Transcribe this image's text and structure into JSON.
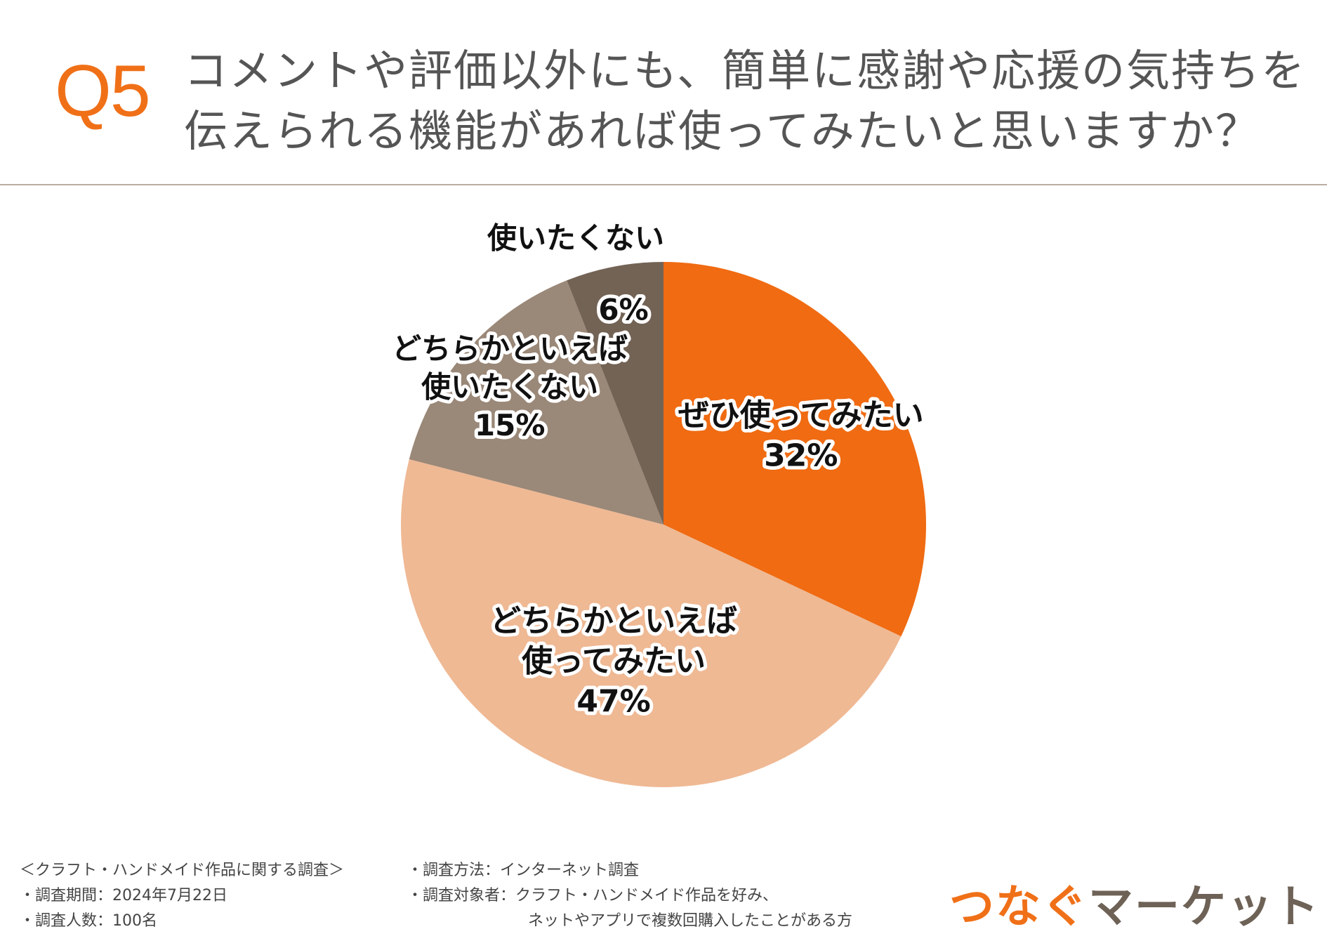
{
  "header": {
    "qnum": "Q5",
    "question_line1": "コメントや評価以外にも、簡単に感謝や応援の気持ちを",
    "question_line2": "伝えられる機能があれば使ってみたいと思いますか？"
  },
  "chart_data": {
    "type": "pie",
    "start_angle_deg": 0,
    "direction": "clockwise",
    "slices": [
      {
        "label_lines": [
          "ぜひ使ってみたい"
        ],
        "value": 32,
        "value_label": "32%",
        "color": "#f06b12"
      },
      {
        "label_lines": [
          "どちらかといえば",
          "使ってみたい"
        ],
        "value": 47,
        "value_label": "47%",
        "color": "#efb994"
      },
      {
        "label_lines": [
          "どちらかといえば",
          "使いたくない"
        ],
        "value": 15,
        "value_label": "15%",
        "color": "#9a8878"
      },
      {
        "label_lines": [
          "使いたくない"
        ],
        "value": 6,
        "value_label": "6%",
        "color": "#736355"
      }
    ]
  },
  "footer": {
    "survey_title": "＜クラフト・ハンドメイド作品に関する調査＞",
    "period": "・調査期間：2024年7月22日",
    "sample": "・調査人数：100名",
    "method": "・調査方法：インターネット調査",
    "target_line1": "・調査対象者：クラフト・ハンドメイド作品を好み、",
    "target_line2": "ネットやアプリで複数回購入したことがある方"
  },
  "logo": {
    "part1": "つなぐ",
    "part2": "マーケット"
  }
}
